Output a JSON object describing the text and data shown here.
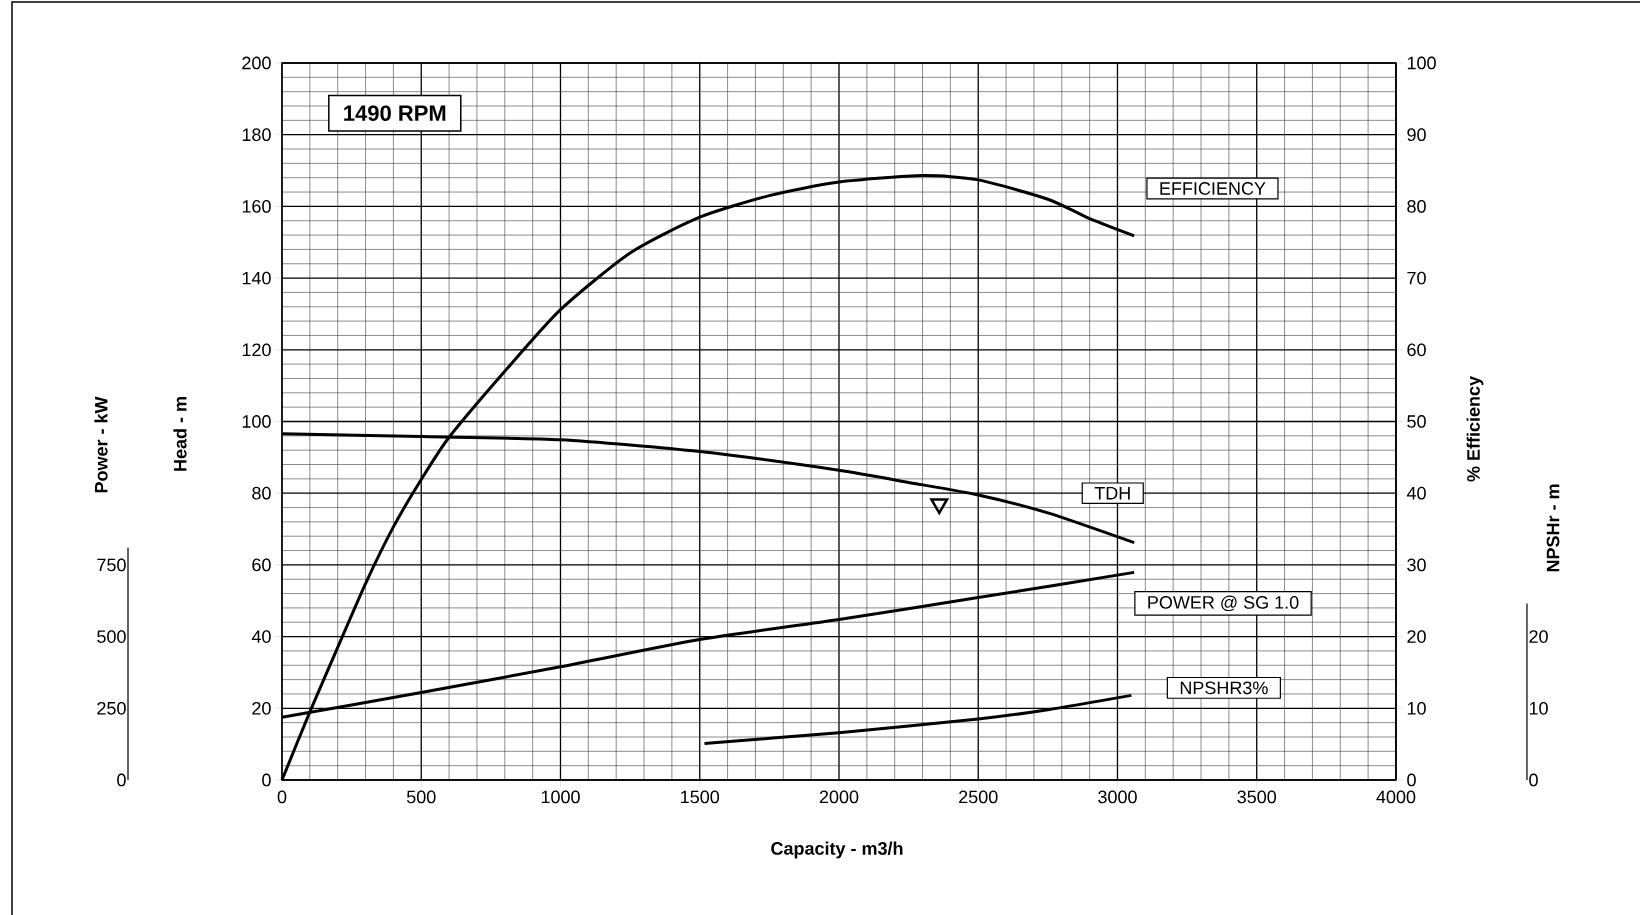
{
  "chart_data": [
    {
      "type": "line",
      "xlabel": "Capacity - m3/h",
      "ylabel": "Head - m",
      "y2label": "% Efficiency",
      "y3label": "Power - kW",
      "xlim": [
        0,
        4000
      ],
      "xticks": [
        0,
        500,
        1000,
        1500,
        2000,
        2500,
        3000,
        3500,
        4000
      ],
      "ylim": [
        0,
        200
      ],
      "yticks": [
        0,
        20,
        40,
        60,
        80,
        100,
        120,
        140,
        160,
        180,
        200
      ],
      "y2lim": [
        0,
        100
      ],
      "y2ticks": [
        0,
        10,
        20,
        30,
        40,
        50,
        60,
        70,
        80,
        90,
        100
      ],
      "y3lim": [
        0,
        810
      ],
      "y3ticks": [
        0,
        250,
        500,
        750
      ],
      "grid": true,
      "annotations": [
        "1490 RPM"
      ],
      "series": [
        {
          "name": "EFFICIENCY",
          "color": "#000000",
          "axis": "y2",
          "x": [
            0,
            100,
            200,
            300,
            400,
            500,
            600,
            800,
            1000,
            1250,
            1500,
            1750,
            2000,
            2300,
            2500,
            2750,
            2900,
            3060
          ],
          "values": [
            0,
            9.5,
            18.5,
            27.4,
            35.3,
            41.9,
            47.8,
            57,
            65.6,
            73.5,
            78.5,
            81.5,
            83.4,
            84.3,
            83.7,
            81,
            78.3,
            75.9
          ]
        },
        {
          "name": "TDH",
          "color": "#000000",
          "x": [
            0,
            500,
            1000,
            1500,
            2000,
            2250,
            2500,
            2750,
            3060
          ],
          "values": [
            96.6,
            95.8,
            94.9,
            91.6,
            86.4,
            83,
            79.5,
            74.5,
            66.2
          ]
        },
        {
          "type": "scatter",
          "marker": "triangle",
          "color": "#000000",
          "x": [
            2360
          ],
          "values": [
            77
          ]
        },
        {
          "name": "POWER @ SG 1.0",
          "color": "#000000",
          "axis": "y3",
          "x": [
            0,
            500,
            1000,
            1500,
            2000,
            2500,
            3060
          ],
          "values": [
            219,
            305,
            395,
            490,
            560,
            636,
            724
          ]
        }
      ]
    },
    {
      "type": "line",
      "ylabel": "NPSHr - m",
      "tick_labels": "y",
      "xlim": [
        0,
        4000
      ],
      "ylim": [
        0,
        24.6
      ],
      "yticks": [
        0,
        10,
        20
      ],
      "series": [
        {
          "name": "NPSHR3%",
          "color": "#000000",
          "x": [
            1517,
            2000,
            2500,
            2750,
            3050
          ],
          "values": [
            5.1,
            6.6,
            8.5,
            9.8,
            11.8
          ]
        }
      ]
    }
  ]
}
